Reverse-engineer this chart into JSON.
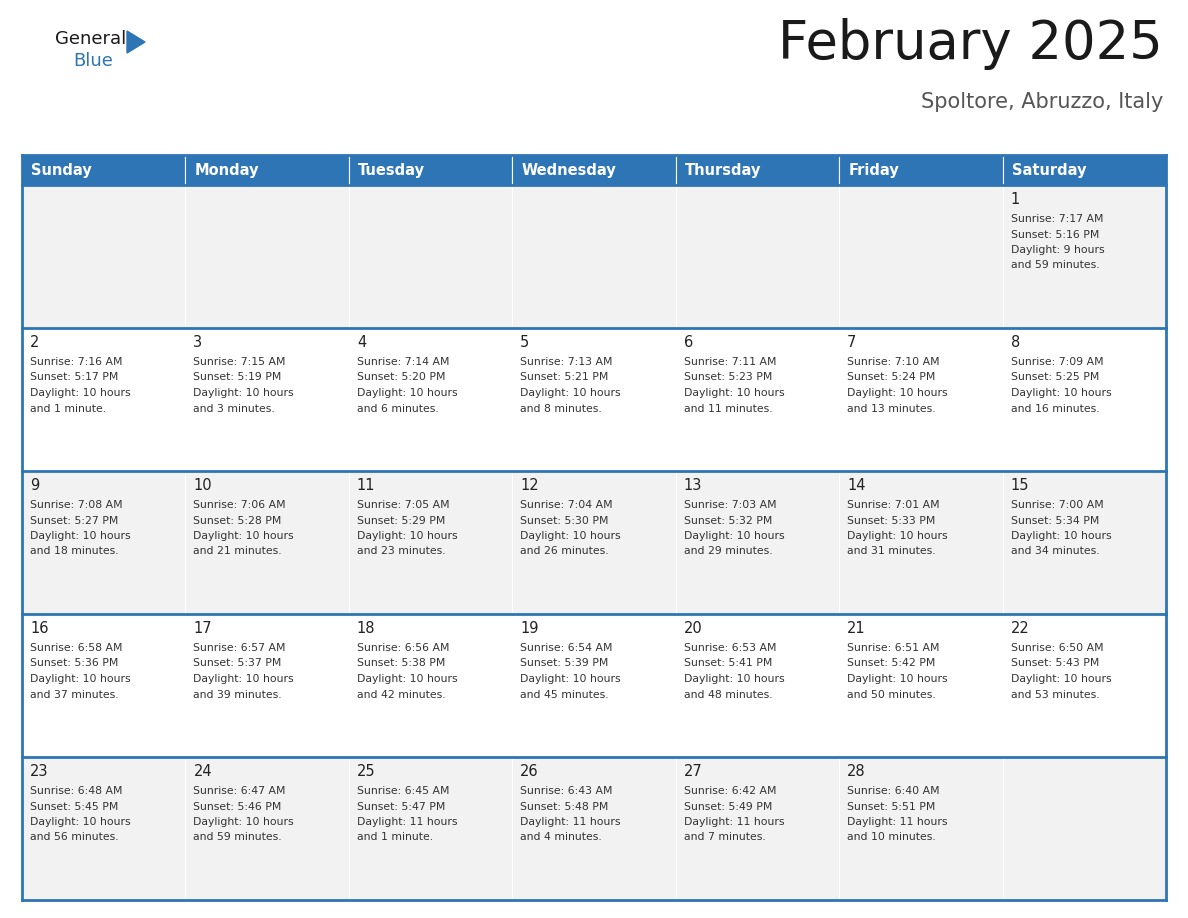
{
  "title": "February 2025",
  "subtitle": "Spoltore, Abruzzo, Italy",
  "header_color": "#2E75B6",
  "header_text_color": "#FFFFFF",
  "header_font_size": 10.5,
  "day_names": [
    "Sunday",
    "Monday",
    "Tuesday",
    "Wednesday",
    "Thursday",
    "Friday",
    "Saturday"
  ],
  "title_font_size": 38,
  "subtitle_font_size": 15,
  "cell_bg_color": "#F2F2F2",
  "cell_bg_alt": "#FFFFFF",
  "border_color": "#2E75B6",
  "days": [
    {
      "day": 1,
      "col": 6,
      "row": 0,
      "sunrise": "7:17 AM",
      "sunset": "5:16 PM",
      "daylight": "9 hours and 59 minutes."
    },
    {
      "day": 2,
      "col": 0,
      "row": 1,
      "sunrise": "7:16 AM",
      "sunset": "5:17 PM",
      "daylight": "10 hours and 1 minute."
    },
    {
      "day": 3,
      "col": 1,
      "row": 1,
      "sunrise": "7:15 AM",
      "sunset": "5:19 PM",
      "daylight": "10 hours and 3 minutes."
    },
    {
      "day": 4,
      "col": 2,
      "row": 1,
      "sunrise": "7:14 AM",
      "sunset": "5:20 PM",
      "daylight": "10 hours and 6 minutes."
    },
    {
      "day": 5,
      "col": 3,
      "row": 1,
      "sunrise": "7:13 AM",
      "sunset": "5:21 PM",
      "daylight": "10 hours and 8 minutes."
    },
    {
      "day": 6,
      "col": 4,
      "row": 1,
      "sunrise": "7:11 AM",
      "sunset": "5:23 PM",
      "daylight": "10 hours and 11 minutes."
    },
    {
      "day": 7,
      "col": 5,
      "row": 1,
      "sunrise": "7:10 AM",
      "sunset": "5:24 PM",
      "daylight": "10 hours and 13 minutes."
    },
    {
      "day": 8,
      "col": 6,
      "row": 1,
      "sunrise": "7:09 AM",
      "sunset": "5:25 PM",
      "daylight": "10 hours and 16 minutes."
    },
    {
      "day": 9,
      "col": 0,
      "row": 2,
      "sunrise": "7:08 AM",
      "sunset": "5:27 PM",
      "daylight": "10 hours and 18 minutes."
    },
    {
      "day": 10,
      "col": 1,
      "row": 2,
      "sunrise": "7:06 AM",
      "sunset": "5:28 PM",
      "daylight": "10 hours and 21 minutes."
    },
    {
      "day": 11,
      "col": 2,
      "row": 2,
      "sunrise": "7:05 AM",
      "sunset": "5:29 PM",
      "daylight": "10 hours and 23 minutes."
    },
    {
      "day": 12,
      "col": 3,
      "row": 2,
      "sunrise": "7:04 AM",
      "sunset": "5:30 PM",
      "daylight": "10 hours and 26 minutes."
    },
    {
      "day": 13,
      "col": 4,
      "row": 2,
      "sunrise": "7:03 AM",
      "sunset": "5:32 PM",
      "daylight": "10 hours and 29 minutes."
    },
    {
      "day": 14,
      "col": 5,
      "row": 2,
      "sunrise": "7:01 AM",
      "sunset": "5:33 PM",
      "daylight": "10 hours and 31 minutes."
    },
    {
      "day": 15,
      "col": 6,
      "row": 2,
      "sunrise": "7:00 AM",
      "sunset": "5:34 PM",
      "daylight": "10 hours and 34 minutes."
    },
    {
      "day": 16,
      "col": 0,
      "row": 3,
      "sunrise": "6:58 AM",
      "sunset": "5:36 PM",
      "daylight": "10 hours and 37 minutes."
    },
    {
      "day": 17,
      "col": 1,
      "row": 3,
      "sunrise": "6:57 AM",
      "sunset": "5:37 PM",
      "daylight": "10 hours and 39 minutes."
    },
    {
      "day": 18,
      "col": 2,
      "row": 3,
      "sunrise": "6:56 AM",
      "sunset": "5:38 PM",
      "daylight": "10 hours and 42 minutes."
    },
    {
      "day": 19,
      "col": 3,
      "row": 3,
      "sunrise": "6:54 AM",
      "sunset": "5:39 PM",
      "daylight": "10 hours and 45 minutes."
    },
    {
      "day": 20,
      "col": 4,
      "row": 3,
      "sunrise": "6:53 AM",
      "sunset": "5:41 PM",
      "daylight": "10 hours and 48 minutes."
    },
    {
      "day": 21,
      "col": 5,
      "row": 3,
      "sunrise": "6:51 AM",
      "sunset": "5:42 PM",
      "daylight": "10 hours and 50 minutes."
    },
    {
      "day": 22,
      "col": 6,
      "row": 3,
      "sunrise": "6:50 AM",
      "sunset": "5:43 PM",
      "daylight": "10 hours and 53 minutes."
    },
    {
      "day": 23,
      "col": 0,
      "row": 4,
      "sunrise": "6:48 AM",
      "sunset": "5:45 PM",
      "daylight": "10 hours and 56 minutes."
    },
    {
      "day": 24,
      "col": 1,
      "row": 4,
      "sunrise": "6:47 AM",
      "sunset": "5:46 PM",
      "daylight": "10 hours and 59 minutes."
    },
    {
      "day": 25,
      "col": 2,
      "row": 4,
      "sunrise": "6:45 AM",
      "sunset": "5:47 PM",
      "daylight": "11 hours and 1 minute."
    },
    {
      "day": 26,
      "col": 3,
      "row": 4,
      "sunrise": "6:43 AM",
      "sunset": "5:48 PM",
      "daylight": "11 hours and 4 minutes."
    },
    {
      "day": 27,
      "col": 4,
      "row": 4,
      "sunrise": "6:42 AM",
      "sunset": "5:49 PM",
      "daylight": "11 hours and 7 minutes."
    },
    {
      "day": 28,
      "col": 5,
      "row": 4,
      "sunrise": "6:40 AM",
      "sunset": "5:51 PM",
      "daylight": "11 hours and 10 minutes."
    }
  ],
  "num_rows": 5,
  "num_cols": 7,
  "logo_general_color": "#1a1a1a",
  "logo_blue_color": "#2E75B6",
  "fig_width": 11.88,
  "fig_height": 9.18,
  "dpi": 100
}
